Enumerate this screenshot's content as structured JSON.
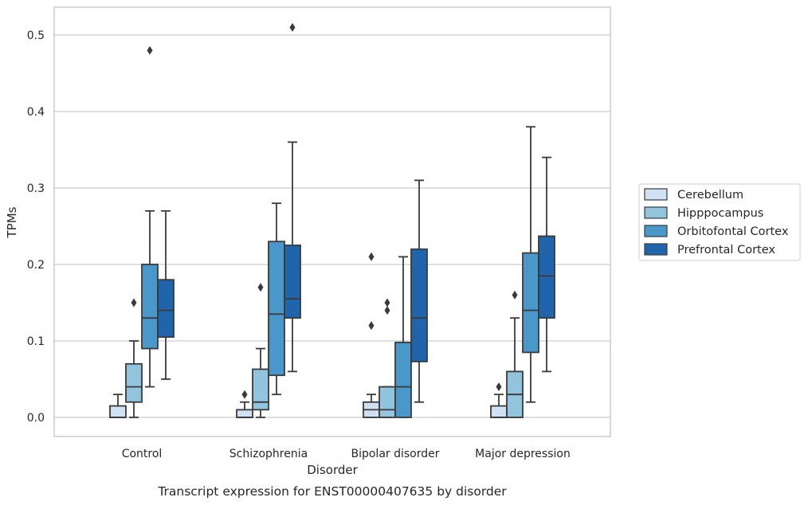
{
  "chart_data": {
    "type": "box",
    "xlabel": "Disorder",
    "ylabel": "TPMs",
    "caption": "Transcript expression for ENST00000407635 by disorder",
    "categories": [
      "Control",
      "Schizophrenia",
      "Bipolar disorder",
      "Major depression"
    ],
    "ylim": [
      -0.025,
      0.537
    ],
    "yticks": [
      0.0,
      0.1,
      0.2,
      0.3,
      0.4,
      0.5
    ],
    "ytick_labels": [
      "0.0",
      "0.1",
      "0.2",
      "0.3",
      "0.4",
      "0.5"
    ],
    "grid": "horizontal",
    "legend_position": "right",
    "series": [
      {
        "name": "Cerebellum",
        "color": "#cfe1f2",
        "boxes": [
          {
            "whisker_low": 0.0,
            "q1": 0.0,
            "median": 0.0,
            "q3": 0.015,
            "whisker_high": 0.03,
            "outliers": []
          },
          {
            "whisker_low": 0.0,
            "q1": 0.0,
            "median": 0.0,
            "q3": 0.01,
            "whisker_high": 0.02,
            "outliers": [
              0.03
            ]
          },
          {
            "whisker_low": 0.0,
            "q1": 0.0,
            "median": 0.01,
            "q3": 0.02,
            "whisker_high": 0.03,
            "outliers": [
              0.12,
              0.21
            ]
          },
          {
            "whisker_low": 0.0,
            "q1": 0.0,
            "median": 0.0,
            "q3": 0.015,
            "whisker_high": 0.03,
            "outliers": [
              0.04
            ]
          }
        ]
      },
      {
        "name": "Hipppocampus",
        "color": "#93c4de",
        "boxes": [
          {
            "whisker_low": 0.0,
            "q1": 0.02,
            "median": 0.04,
            "q3": 0.07,
            "whisker_high": 0.1,
            "outliers": [
              0.15
            ]
          },
          {
            "whisker_low": 0.0,
            "q1": 0.01,
            "median": 0.02,
            "q3": 0.063,
            "whisker_high": 0.09,
            "outliers": [
              0.17
            ]
          },
          {
            "whisker_low": 0.0,
            "q1": 0.0,
            "median": 0.01,
            "q3": 0.04,
            "whisker_high": 0.04,
            "outliers": [
              0.14,
              0.15
            ]
          },
          {
            "whisker_low": 0.0,
            "q1": 0.0,
            "median": 0.03,
            "q3": 0.06,
            "whisker_high": 0.13,
            "outliers": [
              0.16
            ]
          }
        ]
      },
      {
        "name": "Orbitofontal Cortex",
        "color": "#4a98c9",
        "boxes": [
          {
            "whisker_low": 0.04,
            "q1": 0.09,
            "median": 0.13,
            "q3": 0.2,
            "whisker_high": 0.27,
            "outliers": [
              0.48
            ]
          },
          {
            "whisker_low": 0.03,
            "q1": 0.055,
            "median": 0.135,
            "q3": 0.23,
            "whisker_high": 0.28,
            "outliers": []
          },
          {
            "whisker_low": 0.0,
            "q1": 0.0,
            "median": 0.04,
            "q3": 0.098,
            "whisker_high": 0.21,
            "outliers": []
          },
          {
            "whisker_low": 0.02,
            "q1": 0.085,
            "median": 0.14,
            "q3": 0.215,
            "whisker_high": 0.38,
            "outliers": []
          }
        ]
      },
      {
        "name": "Prefrontal Cortex",
        "color": "#2065ab",
        "boxes": [
          {
            "whisker_low": 0.05,
            "q1": 0.105,
            "median": 0.14,
            "q3": 0.18,
            "whisker_high": 0.27,
            "outliers": []
          },
          {
            "whisker_low": 0.06,
            "q1": 0.13,
            "median": 0.155,
            "q3": 0.225,
            "whisker_high": 0.36,
            "outliers": [
              0.51
            ]
          },
          {
            "whisker_low": 0.02,
            "q1": 0.073,
            "median": 0.13,
            "q3": 0.22,
            "whisker_high": 0.31,
            "outliers": []
          },
          {
            "whisker_low": 0.06,
            "q1": 0.13,
            "median": 0.185,
            "q3": 0.237,
            "whisker_high": 0.34,
            "outliers": []
          }
        ]
      }
    ]
  }
}
